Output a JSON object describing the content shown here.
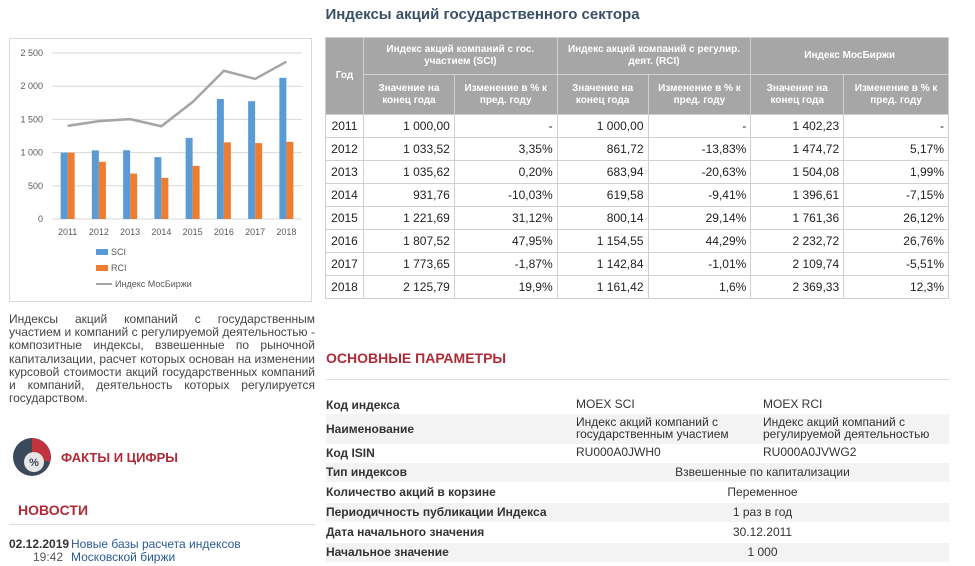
{
  "page_title": "Индексы акций государственного сектора",
  "chart_data": {
    "type": "bar",
    "categories": [
      "2011",
      "2012",
      "2013",
      "2014",
      "2015",
      "2016",
      "2017",
      "2018"
    ],
    "series": [
      {
        "name": "SCI",
        "type": "bar",
        "color": "#5b9bd5",
        "values": [
          1000.0,
          1033.52,
          1035.62,
          931.76,
          1221.69,
          1807.52,
          1773.65,
          2125.79
        ]
      },
      {
        "name": "RCI",
        "type": "bar",
        "color": "#ed7d31",
        "values": [
          1000.0,
          861.72,
          683.94,
          619.58,
          800.14,
          1154.55,
          1142.84,
          1161.42
        ]
      },
      {
        "name": "Индекс МосБиржи",
        "type": "line",
        "color": "#a5a5a5",
        "values": [
          1402.23,
          1474.72,
          1504.08,
          1396.61,
          1761.36,
          2232.72,
          2109.74,
          2369.33
        ]
      }
    ],
    "yticks": [
      "0",
      "500",
      "1 000",
      "1 500",
      "2 000",
      "2 500"
    ],
    "ylim": [
      0,
      2500
    ],
    "grid": true,
    "legend_position": "bottom"
  },
  "description": "Индексы акций компаний с государственным участием и компаний с регулируемой деятельностью - композитные индексы, взвешенные по рыночной капитализации, расчет которых основан на изменении курсовой стоимости акций государственных компаний и компаний, деятельность которых регулируется государством.",
  "facts": {
    "label": "ФАКТЫ И ЦИФРЫ",
    "icon_text": "%"
  },
  "news": {
    "title": "НОВОСТИ",
    "items": [
      {
        "date": "02.12.2019",
        "time": "19:42",
        "line1": "Новые базы расчета индексов",
        "line2": "Московской биржи"
      }
    ]
  },
  "table": {
    "year_header": "Год",
    "groups": [
      "Индекс акций компаний с гос. участием (SCI)",
      "Индекс акций компаний с регулир. деят. (RCI)",
      "Индекс МосБиржи"
    ],
    "sub_value": "Значение на конец года",
    "sub_change": "Изменение в % к пред. году",
    "rows": [
      {
        "year": "2011",
        "c": [
          "1 000,00",
          "-",
          "1 000,00",
          "-",
          "1 402,23",
          "-"
        ]
      },
      {
        "year": "2012",
        "c": [
          "1 033,52",
          "3,35%",
          "861,72",
          "-13,83%",
          "1 474,72",
          "5,17%"
        ]
      },
      {
        "year": "2013",
        "c": [
          "1 035,62",
          "0,20%",
          "683,94",
          "-20,63%",
          "1 504,08",
          "1,99%"
        ]
      },
      {
        "year": "2014",
        "c": [
          "931,76",
          "-10,03%",
          "619,58",
          "-9,41%",
          "1 396,61",
          "-7,15%"
        ]
      },
      {
        "year": "2015",
        "c": [
          "1 221,69",
          "31,12%",
          "800,14",
          "29,14%",
          "1 761,36",
          "26,12%"
        ]
      },
      {
        "year": "2016",
        "c": [
          "1 807,52",
          "47,95%",
          "1 154,55",
          "44,29%",
          "2 232,72",
          "26,76%"
        ]
      },
      {
        "year": "2017",
        "c": [
          "1 773,65",
          "-1,87%",
          "1 142,84",
          "-1,01%",
          "2 109,74",
          "-5,51%"
        ]
      },
      {
        "year": "2018",
        "c": [
          "2 125,79",
          "19,9%",
          "1 161,42",
          "1,6%",
          "2 369,33",
          "12,3%"
        ]
      }
    ]
  },
  "params": {
    "title": "ОСНОВНЫЕ ПАРАМЕТРЫ",
    "code_label": "Код индекса",
    "code_sci": "MOEX SCI",
    "code_rci": "MOEX RCI",
    "name_label": "Наименование",
    "name_sci_1": "Индекс акций компаний с",
    "name_sci_2": "государственным участием",
    "name_rci_1": "Индекс акций компаний с",
    "name_rci_2": "регулируемой деятельностью",
    "isin_label": "Код ISIN",
    "isin_sci": "RU000A0JWH0",
    "isin_rci": "RU000A0JVWG2",
    "type_label": "Тип индексов",
    "type_value": "Взвешенные по капитализации",
    "count_label": "Количество акций в корзине",
    "count_value": "Переменное",
    "freq_label": "Периодичность публикации Индекса",
    "freq_value": "1 раз в год",
    "start_date_label": "Дата начального значения",
    "start_date_value": "30.12.2011",
    "start_value_label": "Начальное значение",
    "start_value_value": "1 000"
  }
}
